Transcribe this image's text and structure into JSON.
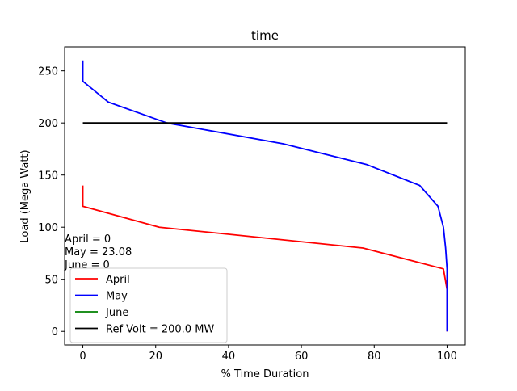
{
  "chart_data": {
    "type": "line",
    "title": "time",
    "xlabel": "% Time Duration",
    "ylabel": "Load (Mega Watt)",
    "xlim": [
      -5,
      105
    ],
    "ylim": [
      -13,
      273
    ],
    "x_ticks": [
      0,
      20,
      40,
      60,
      80,
      100
    ],
    "y_ticks": [
      0,
      50,
      100,
      150,
      200,
      250
    ],
    "grid": false,
    "legend_position": "lower-left",
    "series": [
      {
        "name": "April",
        "color": "#ff0000",
        "points": [
          [
            0,
            140
          ],
          [
            0,
            120
          ],
          [
            21,
            100
          ],
          [
            76.9,
            80
          ],
          [
            99,
            60
          ],
          [
            100,
            40
          ],
          [
            100,
            20
          ],
          [
            100,
            0
          ]
        ]
      },
      {
        "name": "May",
        "color": "#0000ff",
        "points": [
          [
            0,
            260
          ],
          [
            0,
            240
          ],
          [
            7,
            220
          ],
          [
            23.08,
            200
          ],
          [
            55,
            180
          ],
          [
            78,
            160
          ],
          [
            92.5,
            140
          ],
          [
            97.5,
            120
          ],
          [
            99,
            100
          ],
          [
            99.6,
            80
          ],
          [
            100,
            60
          ],
          [
            100,
            40
          ],
          [
            100,
            20
          ],
          [
            100,
            0
          ]
        ]
      },
      {
        "name": "June",
        "color": "#008000",
        "points": []
      },
      {
        "name": "Ref Volt = 200.0 MW",
        "color": "#000000",
        "points": [
          [
            0,
            200
          ],
          [
            100,
            200
          ]
        ]
      }
    ],
    "annotations": [
      "April = 0",
      "May = 23.08",
      "June = 0"
    ]
  }
}
